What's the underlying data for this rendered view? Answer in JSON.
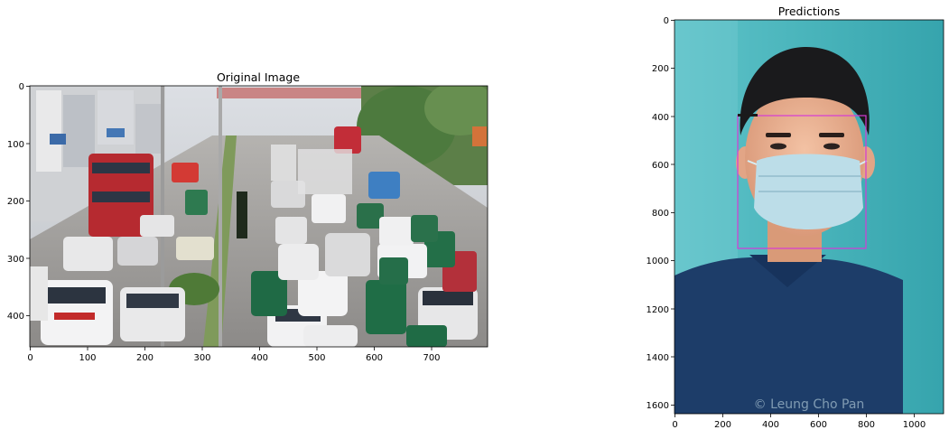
{
  "figure": {
    "left_panel": {
      "title": "Original Image",
      "x_ticks": [
        "0",
        "100",
        "200",
        "300",
        "400",
        "500",
        "600",
        "700"
      ],
      "y_ticks": [
        "0",
        "100",
        "200",
        "300",
        "400"
      ]
    },
    "right_panel": {
      "title": "Predictions",
      "x_ticks": [
        "0",
        "200",
        "400",
        "600",
        "800",
        "1000"
      ],
      "y_ticks": [
        "0",
        "200",
        "400",
        "600",
        "800",
        "1000",
        "1200",
        "1400",
        "1600"
      ],
      "watermark": "© Leung Cho Pan",
      "box_color": "#d63ad6"
    }
  }
}
